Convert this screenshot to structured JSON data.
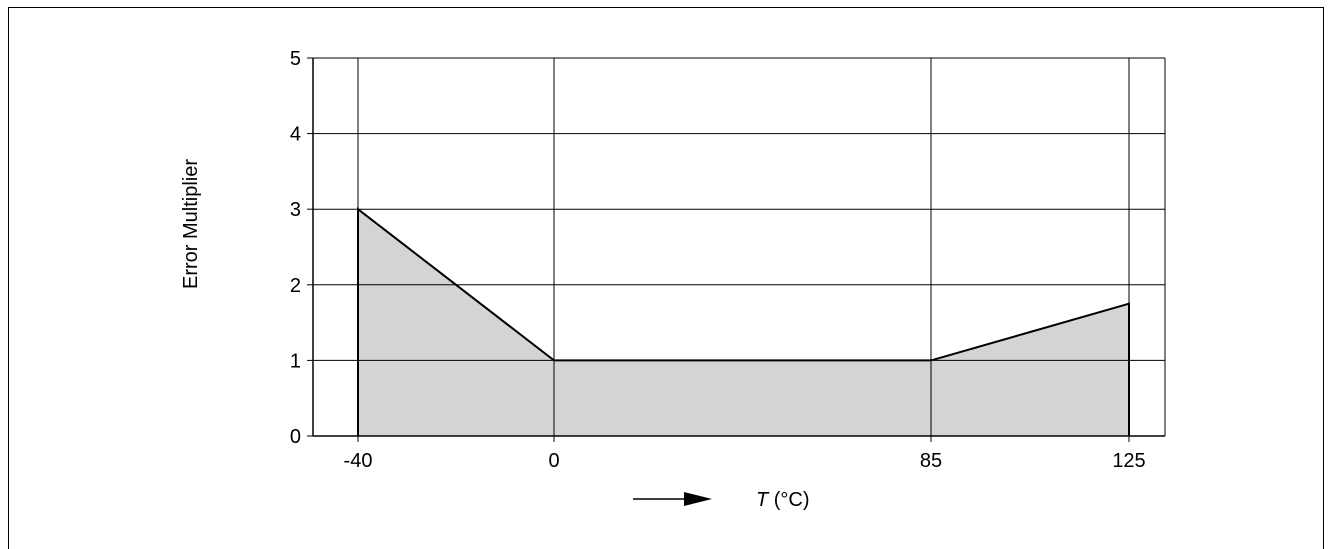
{
  "chart_data": {
    "type": "area",
    "title": "",
    "xlabel_symbol": "T",
    "xlabel_unit": " (°C)",
    "ylabel": "Error Multiplier",
    "x": [
      -40,
      0,
      85,
      125
    ],
    "xticks": [
      "-40",
      "0",
      "85",
      "125"
    ],
    "yticks": [
      "0",
      "1",
      "2",
      "3",
      "4",
      "5"
    ],
    "ylim": [
      0,
      5
    ],
    "grid": true,
    "fill_color": "#d4d4d4",
    "line_color": "#000000",
    "series": [
      {
        "values": [
          3,
          1,
          1,
          1.75
        ]
      }
    ]
  }
}
